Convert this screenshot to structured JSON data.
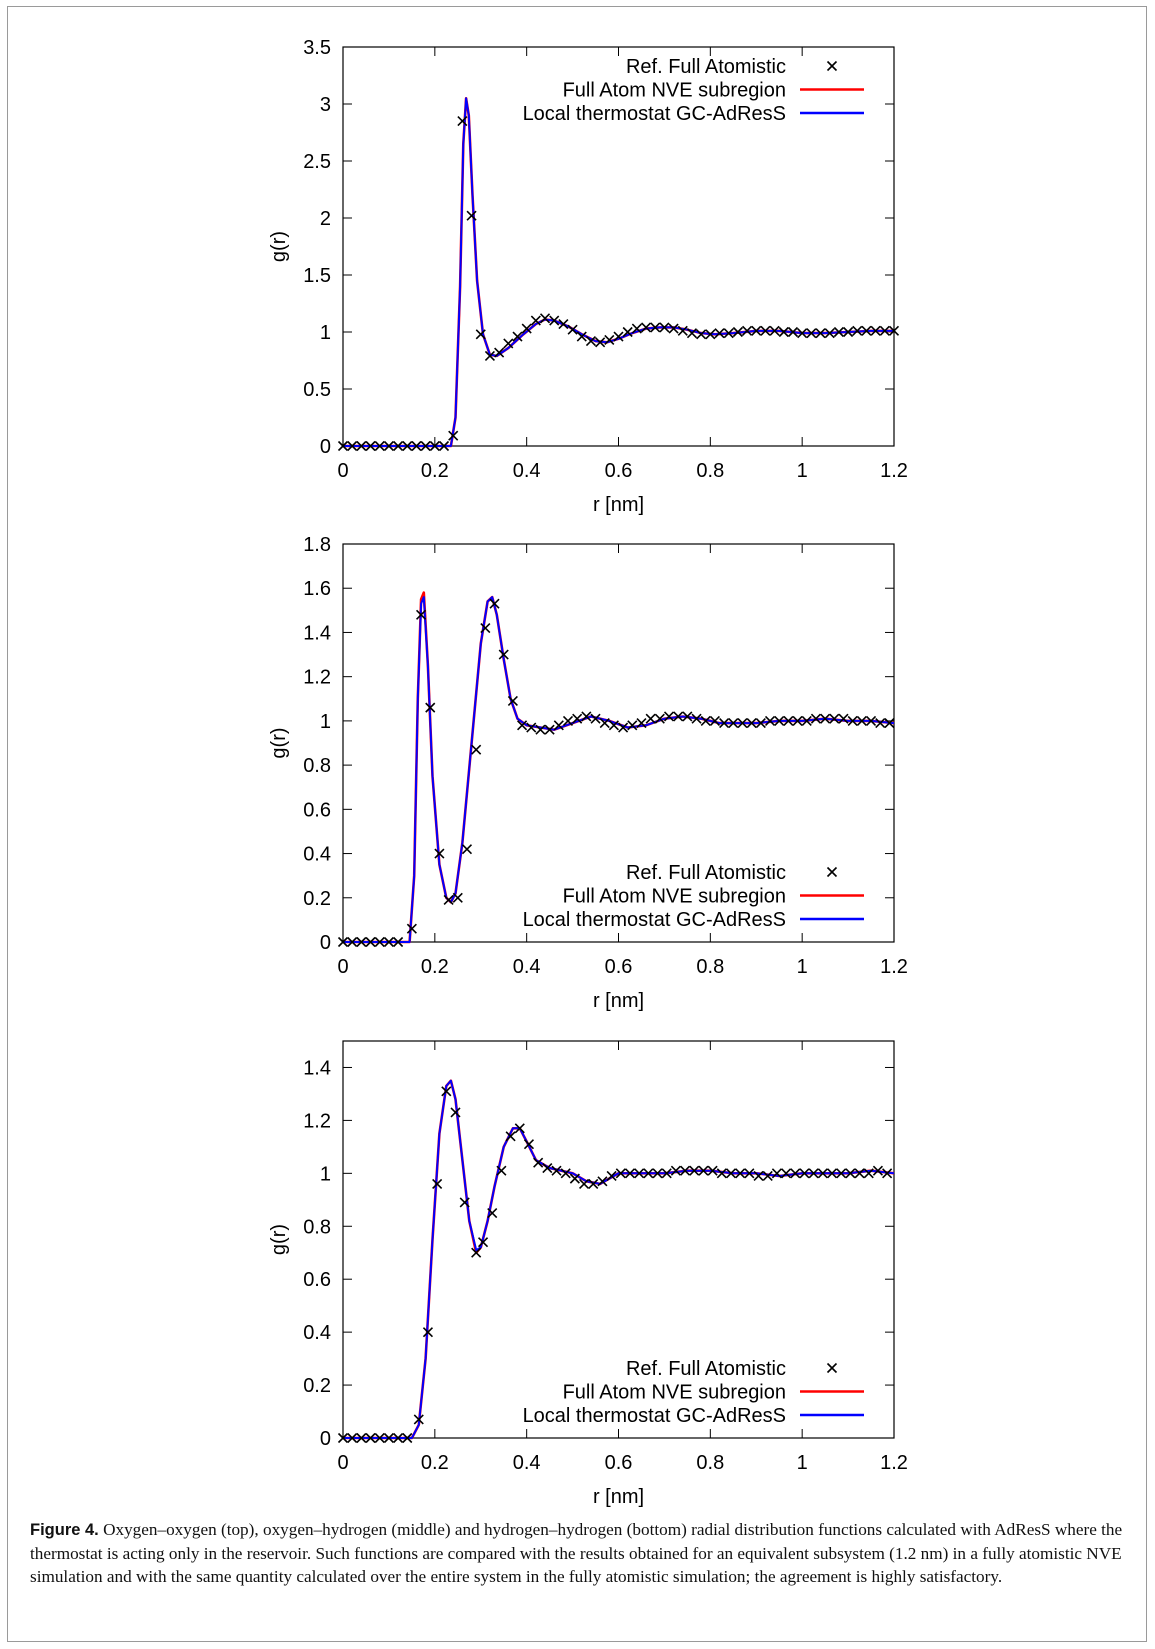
{
  "chart_data": [
    {
      "type": "line",
      "title": "",
      "xlabel": "r [nm]",
      "ylabel": "g(r)",
      "xlim": [
        0,
        1.2
      ],
      "ylim": [
        0,
        3.5
      ],
      "xticks": [
        "0",
        "0.2",
        "0.4",
        "0.6",
        "0.8",
        "1",
        "1.2"
      ],
      "yticks": [
        "0",
        "0.5",
        "1",
        "1.5",
        "2",
        "2.5",
        "3",
        "3.5"
      ],
      "legend_position": "top-right",
      "series": [
        {
          "name": "Ref. Full Atomistic",
          "style": "markers",
          "color": "#000000",
          "x": [
            0.0,
            0.02,
            0.04,
            0.06,
            0.08,
            0.1,
            0.12,
            0.14,
            0.16,
            0.18,
            0.2,
            0.22,
            0.24,
            0.26,
            0.28,
            0.3,
            0.32,
            0.34,
            0.36,
            0.38,
            0.4,
            0.42,
            0.44,
            0.46,
            0.48,
            0.5,
            0.52,
            0.54,
            0.56,
            0.58,
            0.6,
            0.62,
            0.64,
            0.66,
            0.68,
            0.7,
            0.72,
            0.74,
            0.76,
            0.78,
            0.8,
            0.82,
            0.84,
            0.86,
            0.88,
            0.9,
            0.92,
            0.94,
            0.96,
            0.98,
            1.0,
            1.02,
            1.04,
            1.06,
            1.08,
            1.1,
            1.12,
            1.14,
            1.16,
            1.18,
            1.2
          ],
          "y": [
            0,
            0,
            0,
            0,
            0,
            0,
            0,
            0,
            0,
            0,
            0,
            0,
            0.09,
            2.85,
            2.02,
            0.98,
            0.79,
            0.82,
            0.9,
            0.96,
            1.03,
            1.1,
            1.12,
            1.1,
            1.07,
            1.02,
            0.96,
            0.92,
            0.91,
            0.93,
            0.96,
            1.0,
            1.03,
            1.04,
            1.04,
            1.04,
            1.03,
            1.01,
            0.99,
            0.98,
            0.98,
            0.99,
            0.99,
            1.0,
            1.01,
            1.01,
            1.01,
            1.01,
            1.0,
            1.0,
            0.99,
            0.99,
            0.99,
            0.99,
            1.0,
            1.0,
            1.01,
            1.01,
            1.01,
            1.01,
            1.01
          ]
        },
        {
          "name": "Full Atom NVE subregion",
          "style": "line",
          "color": "#ff0000",
          "x": [
            0.0,
            0.235,
            0.245,
            0.255,
            0.262,
            0.268,
            0.274,
            0.282,
            0.292,
            0.305,
            0.32,
            0.335,
            0.36,
            0.39,
            0.42,
            0.44,
            0.46,
            0.49,
            0.52,
            0.55,
            0.575,
            0.6,
            0.63,
            0.66,
            0.69,
            0.72,
            0.75,
            0.78,
            0.81,
            0.85,
            0.9,
            0.95,
            1.0,
            1.05,
            1.1,
            1.15,
            1.2
          ],
          "y": [
            0,
            0,
            0.25,
            1.4,
            2.65,
            3.05,
            2.9,
            2.2,
            1.45,
            0.98,
            0.8,
            0.79,
            0.86,
            0.97,
            1.07,
            1.11,
            1.1,
            1.05,
            0.98,
            0.92,
            0.91,
            0.94,
            0.99,
            1.03,
            1.04,
            1.04,
            1.02,
            0.99,
            0.98,
            0.99,
            1.01,
            1.01,
            0.99,
            0.99,
            1.0,
            1.01,
            1.01
          ]
        },
        {
          "name": "Local thermostat GC-AdResS",
          "style": "line",
          "color": "#0000ff",
          "x": [
            0.0,
            0.235,
            0.245,
            0.255,
            0.262,
            0.268,
            0.274,
            0.282,
            0.292,
            0.305,
            0.32,
            0.335,
            0.36,
            0.39,
            0.42,
            0.44,
            0.46,
            0.49,
            0.52,
            0.55,
            0.575,
            0.6,
            0.63,
            0.66,
            0.69,
            0.72,
            0.75,
            0.78,
            0.81,
            0.85,
            0.9,
            0.95,
            1.0,
            1.05,
            1.1,
            1.15,
            1.2
          ],
          "y": [
            0,
            0,
            0.25,
            1.4,
            2.65,
            3.05,
            2.9,
            2.2,
            1.45,
            0.98,
            0.8,
            0.79,
            0.86,
            0.97,
            1.07,
            1.11,
            1.1,
            1.05,
            0.98,
            0.92,
            0.91,
            0.94,
            0.99,
            1.03,
            1.04,
            1.04,
            1.02,
            0.99,
            0.98,
            0.99,
            1.01,
            1.01,
            0.99,
            0.99,
            1.0,
            1.01,
            1.01
          ]
        }
      ]
    },
    {
      "type": "line",
      "title": "",
      "xlabel": "r [nm]",
      "ylabel": "g(r)",
      "xlim": [
        0,
        1.2
      ],
      "ylim": [
        0,
        1.8
      ],
      "xticks": [
        "0",
        "0.2",
        "0.4",
        "0.6",
        "0.8",
        "1",
        "1.2"
      ],
      "yticks": [
        "0",
        "0.2",
        "0.4",
        "0.6",
        "0.8",
        "1",
        "1.2",
        "1.4",
        "1.6",
        "1.8"
      ],
      "legend_position": "bottom-right",
      "series": [
        {
          "name": "Ref. Full Atomistic",
          "style": "markers",
          "color": "#000000",
          "x": [
            0.0,
            0.02,
            0.04,
            0.06,
            0.08,
            0.1,
            0.12,
            0.15,
            0.17,
            0.19,
            0.21,
            0.23,
            0.25,
            0.27,
            0.29,
            0.31,
            0.33,
            0.35,
            0.37,
            0.39,
            0.41,
            0.43,
            0.45,
            0.47,
            0.49,
            0.51,
            0.53,
            0.55,
            0.57,
            0.59,
            0.61,
            0.63,
            0.65,
            0.67,
            0.69,
            0.71,
            0.73,
            0.75,
            0.77,
            0.79,
            0.81,
            0.83,
            0.85,
            0.87,
            0.89,
            0.91,
            0.93,
            0.95,
            0.97,
            0.99,
            1.01,
            1.03,
            1.05,
            1.07,
            1.09,
            1.11,
            1.13,
            1.15,
            1.17,
            1.19
          ],
          "y": [
            0,
            0,
            0,
            0,
            0,
            0,
            0,
            0.06,
            1.48,
            1.06,
            0.4,
            0.19,
            0.2,
            0.42,
            0.87,
            1.42,
            1.53,
            1.3,
            1.09,
            0.98,
            0.97,
            0.96,
            0.96,
            0.98,
            1.0,
            1.01,
            1.02,
            1.01,
            0.99,
            0.98,
            0.97,
            0.98,
            0.99,
            1.01,
            1.01,
            1.02,
            1.02,
            1.02,
            1.01,
            1.0,
            1.0,
            0.99,
            0.99,
            0.99,
            0.99,
            0.99,
            1.0,
            1.0,
            1.0,
            1.0,
            1.0,
            1.01,
            1.01,
            1.01,
            1.01,
            1.0,
            1.0,
            1.0,
            0.99,
            0.99
          ]
        },
        {
          "name": "Full Atom NVE subregion",
          "style": "line",
          "color": "#ff0000",
          "x": [
            0.0,
            0.145,
            0.155,
            0.163,
            0.17,
            0.176,
            0.185,
            0.195,
            0.21,
            0.225,
            0.235,
            0.245,
            0.26,
            0.28,
            0.3,
            0.315,
            0.325,
            0.335,
            0.35,
            0.365,
            0.38,
            0.4,
            0.43,
            0.46,
            0.5,
            0.54,
            0.58,
            0.62,
            0.66,
            0.7,
            0.74,
            0.78,
            0.82,
            0.86,
            0.9,
            0.95,
            1.0,
            1.05,
            1.1,
            1.15,
            1.2
          ],
          "y": [
            0,
            0,
            0.3,
            1.1,
            1.55,
            1.58,
            1.25,
            0.75,
            0.35,
            0.2,
            0.18,
            0.22,
            0.45,
            0.9,
            1.35,
            1.54,
            1.56,
            1.48,
            1.28,
            1.1,
            1.01,
            0.98,
            0.97,
            0.96,
            0.99,
            1.02,
            1.0,
            0.97,
            0.98,
            1.01,
            1.02,
            1.01,
            0.99,
            0.99,
            0.99,
            1.0,
            1.0,
            1.01,
            1.0,
            1.0,
            0.99
          ]
        },
        {
          "name": "Local thermostat GC-AdResS",
          "style": "line",
          "color": "#0000ff",
          "x": [
            0.0,
            0.145,
            0.155,
            0.163,
            0.17,
            0.176,
            0.185,
            0.195,
            0.21,
            0.225,
            0.235,
            0.245,
            0.26,
            0.28,
            0.3,
            0.315,
            0.325,
            0.335,
            0.35,
            0.365,
            0.38,
            0.4,
            0.43,
            0.46,
            0.5,
            0.54,
            0.58,
            0.62,
            0.66,
            0.7,
            0.74,
            0.78,
            0.82,
            0.86,
            0.9,
            0.95,
            1.0,
            1.05,
            1.1,
            1.15,
            1.2
          ],
          "y": [
            0,
            0,
            0.3,
            1.1,
            1.53,
            1.56,
            1.25,
            0.75,
            0.35,
            0.2,
            0.18,
            0.22,
            0.45,
            0.9,
            1.35,
            1.54,
            1.56,
            1.48,
            1.28,
            1.1,
            1.01,
            0.98,
            0.97,
            0.96,
            0.99,
            1.02,
            1.0,
            0.97,
            0.98,
            1.01,
            1.02,
            1.01,
            0.99,
            0.99,
            0.99,
            1.0,
            1.0,
            1.01,
            1.0,
            1.0,
            0.99
          ]
        }
      ]
    },
    {
      "type": "line",
      "title": "",
      "xlabel": "r [nm]",
      "ylabel": "g(r)",
      "xlim": [
        0,
        1.2
      ],
      "ylim": [
        0,
        1.5
      ],
      "xticks": [
        "0",
        "0.2",
        "0.4",
        "0.6",
        "0.8",
        "1",
        "1.2"
      ],
      "yticks": [
        "0",
        "0.2",
        "0.4",
        "0.6",
        "0.8",
        "1",
        "1.2",
        "1.4"
      ],
      "legend_position": "bottom-right",
      "series": [
        {
          "name": "Ref. Full Atomistic",
          "style": "markers",
          "color": "#000000",
          "x": [
            0.0,
            0.02,
            0.04,
            0.06,
            0.08,
            0.1,
            0.12,
            0.14,
            0.165,
            0.185,
            0.205,
            0.225,
            0.245,
            0.265,
            0.29,
            0.305,
            0.325,
            0.345,
            0.365,
            0.385,
            0.405,
            0.425,
            0.445,
            0.465,
            0.485,
            0.505,
            0.525,
            0.545,
            0.565,
            0.585,
            0.605,
            0.625,
            0.645,
            0.665,
            0.685,
            0.705,
            0.725,
            0.745,
            0.765,
            0.785,
            0.805,
            0.825,
            0.845,
            0.865,
            0.885,
            0.905,
            0.925,
            0.945,
            0.965,
            0.985,
            1.005,
            1.025,
            1.045,
            1.065,
            1.085,
            1.105,
            1.125,
            1.145,
            1.165,
            1.185
          ],
          "y": [
            0,
            0,
            0,
            0,
            0,
            0,
            0,
            0,
            0.07,
            0.4,
            0.96,
            1.31,
            1.23,
            0.89,
            0.7,
            0.74,
            0.85,
            1.01,
            1.14,
            1.17,
            1.11,
            1.04,
            1.02,
            1.01,
            1.0,
            0.98,
            0.96,
            0.96,
            0.97,
            0.99,
            1.0,
            1.0,
            1.0,
            1.0,
            1.0,
            1.0,
            1.01,
            1.01,
            1.01,
            1.01,
            1.01,
            1.0,
            1.0,
            1.0,
            1.0,
            0.99,
            0.99,
            1.0,
            1.0,
            1.0,
            1.0,
            1.0,
            1.0,
            1.0,
            1.0,
            1.0,
            1.0,
            1.0,
            1.01,
            1.0
          ]
        },
        {
          "name": "Full Atom NVE subregion",
          "style": "line",
          "color": "#ff0000",
          "x": [
            0.0,
            0.15,
            0.165,
            0.18,
            0.195,
            0.21,
            0.225,
            0.235,
            0.245,
            0.26,
            0.275,
            0.29,
            0.3,
            0.315,
            0.33,
            0.35,
            0.37,
            0.385,
            0.4,
            0.42,
            0.45,
            0.5,
            0.53,
            0.56,
            0.6,
            0.65,
            0.7,
            0.75,
            0.8,
            0.85,
            0.9,
            0.95,
            1.0,
            1.05,
            1.1,
            1.15,
            1.2
          ],
          "y": [
            0,
            0,
            0.05,
            0.3,
            0.75,
            1.15,
            1.33,
            1.35,
            1.28,
            1.05,
            0.82,
            0.7,
            0.72,
            0.82,
            0.95,
            1.1,
            1.17,
            1.17,
            1.12,
            1.05,
            1.02,
            1.0,
            0.97,
            0.96,
            1.0,
            1.0,
            1.0,
            1.01,
            1.01,
            1.0,
            1.0,
            0.99,
            1.0,
            1.0,
            1.0,
            1.01,
            1.0
          ]
        },
        {
          "name": "Local thermostat GC-AdResS",
          "style": "line",
          "color": "#0000ff",
          "x": [
            0.0,
            0.15,
            0.165,
            0.18,
            0.195,
            0.21,
            0.225,
            0.235,
            0.245,
            0.26,
            0.275,
            0.29,
            0.3,
            0.315,
            0.33,
            0.35,
            0.37,
            0.385,
            0.4,
            0.42,
            0.45,
            0.5,
            0.53,
            0.56,
            0.6,
            0.65,
            0.7,
            0.75,
            0.8,
            0.85,
            0.9,
            0.95,
            1.0,
            1.05,
            1.1,
            1.15,
            1.2
          ],
          "y": [
            0,
            0,
            0.05,
            0.3,
            0.75,
            1.15,
            1.33,
            1.35,
            1.28,
            1.05,
            0.82,
            0.71,
            0.72,
            0.82,
            0.95,
            1.1,
            1.17,
            1.17,
            1.12,
            1.05,
            1.02,
            1.0,
            0.97,
            0.96,
            1.0,
            1.0,
            1.0,
            1.01,
            1.01,
            1.0,
            1.0,
            0.99,
            1.0,
            1.0,
            1.0,
            1.01,
            1.0
          ]
        }
      ]
    }
  ],
  "caption": {
    "label": "Figure 4.",
    "text": "Oxygen–oxygen (top), oxygen–hydrogen (middle) and hydrogen–hydrogen (bottom) radial distribution functions calculated with AdResS where the thermostat is acting only in the reservoir. Such functions are compared with the results obtained for an equivalent subsystem (1.2 nm) in a fully atomistic NVE simulation and with the same quantity calculated over the entire system in the fully atomistic simulation; the agreement is highly satisfactory."
  }
}
